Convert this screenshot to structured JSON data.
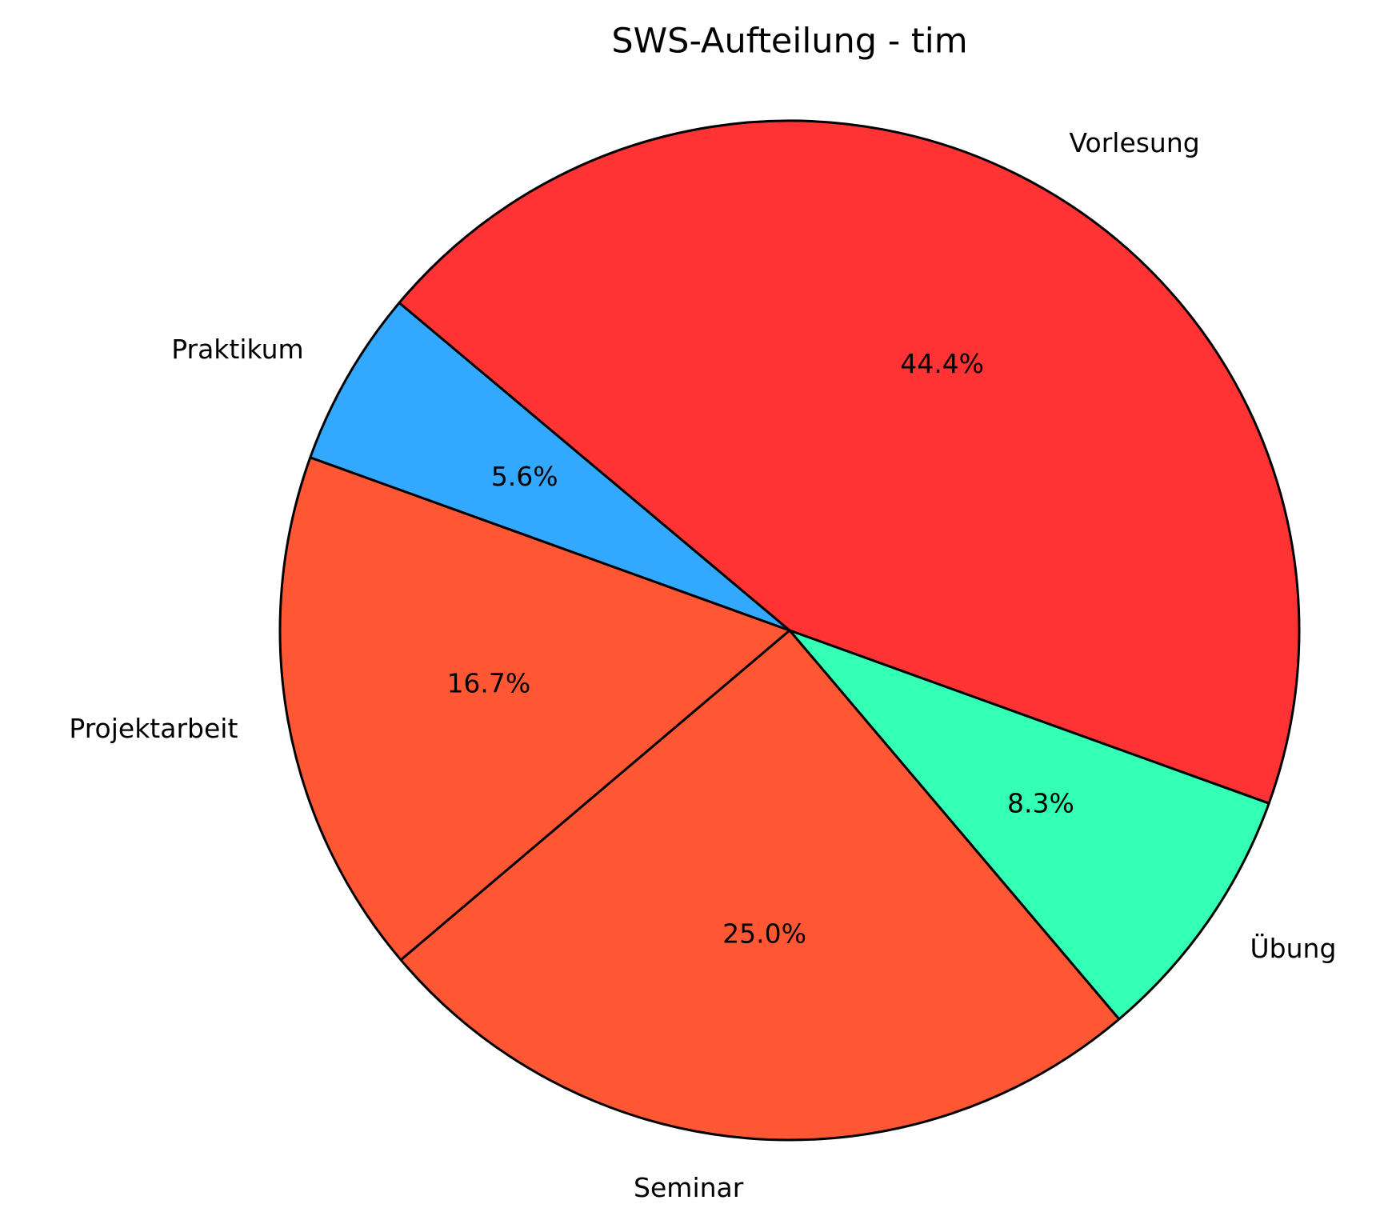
{
  "chart_data": {
    "type": "pie",
    "title": "SWS-Aufteilung - tim",
    "categories": [
      "Vorlesung",
      "Übung",
      "Seminar",
      "Projektarbeit",
      "Praktikum"
    ],
    "values": [
      44.4,
      8.3,
      25.0,
      16.7,
      5.6
    ],
    "value_labels": [
      "44.4%",
      "8.3%",
      "25.0%",
      "16.7%",
      "5.6%"
    ],
    "colors": [
      "#ff3333",
      "#33ffb5",
      "#ff5733",
      "#ff5733",
      "#33a8ff"
    ],
    "start_angle": 140,
    "clockwise": true
  }
}
